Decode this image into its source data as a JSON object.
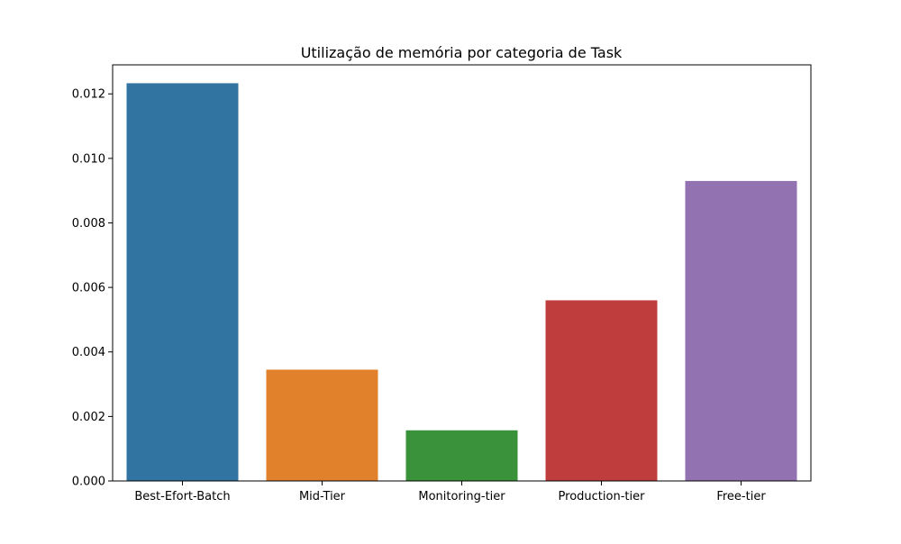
{
  "chart_data": {
    "type": "bar",
    "title": "Utilização de memória por categoria de Task",
    "xlabel": "",
    "ylabel": "",
    "categories": [
      "Best-Efort-Batch",
      "Mid-Tier",
      "Monitoring-tier",
      "Production-tier",
      "Free-tier"
    ],
    "values": [
      0.01233,
      0.00345,
      0.00157,
      0.0056,
      0.0093
    ],
    "colors": [
      "#3274a1",
      "#e1812c",
      "#3a923a",
      "#c03d3e",
      "#9372b2"
    ],
    "ylim": [
      0,
      0.0129
    ],
    "yticks": [
      0,
      0.002,
      0.004,
      0.006,
      0.008,
      0.01,
      0.012
    ],
    "ytick_labels": [
      "0.000",
      "0.002",
      "0.004",
      "0.006",
      "0.008",
      "0.010",
      "0.012"
    ],
    "grid": false,
    "legend": "none"
  }
}
